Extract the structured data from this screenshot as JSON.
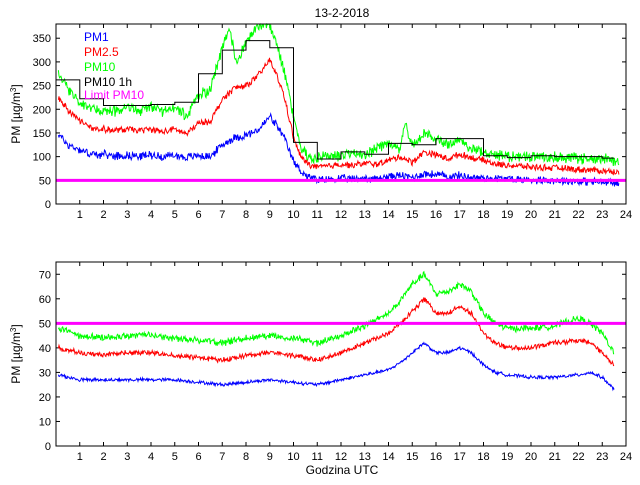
{
  "chart_data": [
    {
      "type": "line",
      "title": "13-2-2018",
      "ylabel_main": "PM [µg/m",
      "ylabel_sup": "3",
      "ylabel_end": "]",
      "xlabel": "",
      "xlim": [
        0,
        24
      ],
      "ylim": [
        0,
        380
      ],
      "xticks": [
        1,
        2,
        3,
        4,
        5,
        6,
        7,
        8,
        9,
        10,
        11,
        12,
        13,
        14,
        15,
        16,
        17,
        18,
        19,
        20,
        21,
        22,
        23,
        24
      ],
      "yticks": [
        0,
        50,
        100,
        150,
        200,
        250,
        300,
        350
      ],
      "limit": 50,
      "legend_position": "top-left",
      "series": [
        {
          "name": "PM1",
          "color": "#0000ff",
          "x": [
            0.1,
            0.5,
            1,
            1.5,
            2,
            2.5,
            3,
            3.5,
            4,
            4.5,
            5,
            5.5,
            6,
            6.5,
            7,
            7.5,
            8,
            8.5,
            8.8,
            9,
            9.3,
            9.6,
            10,
            10.3,
            10.6,
            10.8,
            11,
            11.5,
            12,
            12.5,
            13,
            13.5,
            14,
            14.5,
            15,
            15.5,
            16,
            16.5,
            17,
            17.5,
            18,
            18.5,
            19,
            19.5,
            20,
            20.5,
            21,
            21.5,
            22,
            22.5,
            23,
            23.5,
            23.7
          ],
          "values": [
            148,
            125,
            115,
            105,
            104,
            102,
            103,
            101,
            104,
            100,
            103,
            98,
            103,
            100,
            125,
            140,
            145,
            155,
            172,
            185,
            165,
            140,
            90,
            70,
            58,
            55,
            50,
            52,
            54,
            52,
            55,
            53,
            58,
            60,
            56,
            64,
            62,
            58,
            60,
            56,
            55,
            54,
            53,
            52,
            51,
            51,
            50,
            49,
            48,
            47,
            46,
            44,
            42
          ]
        },
        {
          "name": "PM2.5",
          "color": "#ff0000",
          "x": [
            0.1,
            0.5,
            1,
            1.5,
            2,
            2.5,
            3,
            3.5,
            4,
            4.5,
            5,
            5.5,
            6,
            6.5,
            7,
            7.5,
            8,
            8.5,
            8.8,
            9,
            9.3,
            9.6,
            10,
            10.3,
            10.6,
            10.8,
            11,
            11.5,
            12,
            12.5,
            13,
            13.5,
            14,
            14.5,
            15,
            15.5,
            16,
            16.5,
            17,
            17.5,
            18,
            18.5,
            19,
            19.5,
            20,
            20.5,
            21,
            21.5,
            22,
            22.5,
            23,
            23.5,
            23.7
          ],
          "values": [
            225,
            200,
            175,
            160,
            158,
            155,
            158,
            155,
            158,
            152,
            158,
            148,
            170,
            175,
            220,
            245,
            250,
            270,
            290,
            305,
            270,
            230,
            140,
            100,
            85,
            80,
            78,
            80,
            84,
            82,
            86,
            84,
            92,
            100,
            88,
            110,
            104,
            95,
            105,
            98,
            92,
            84,
            82,
            80,
            78,
            77,
            76,
            75,
            73,
            72,
            70,
            68,
            66
          ]
        },
        {
          "name": "PM10",
          "color": "#00ff00",
          "x": [
            0.1,
            0.5,
            1,
            1.5,
            2,
            2.5,
            3,
            3.5,
            4,
            4.5,
            5,
            5.5,
            6,
            6.5,
            7,
            7.3,
            7.6,
            8,
            8.5,
            8.8,
            9,
            9.3,
            9.6,
            10,
            10.3,
            10.6,
            10.8,
            11,
            11.5,
            12,
            12.5,
            13,
            13.5,
            14,
            14.5,
            14.7,
            15,
            15.5,
            16,
            16.5,
            17,
            17.5,
            18,
            18.5,
            19,
            19.5,
            20,
            20.5,
            21,
            21.5,
            22,
            22.5,
            23,
            23.5,
            23.7
          ],
          "values": [
            275,
            245,
            215,
            200,
            198,
            195,
            205,
            198,
            208,
            192,
            205,
            185,
            230,
            240,
            330,
            370,
            300,
            340,
            375,
            380,
            375,
            340,
            280,
            180,
            120,
            100,
            95,
            100,
            105,
            102,
            108,
            104,
            115,
            130,
            112,
            175,
            120,
            150,
            135,
            125,
            130,
            120,
            110,
            105,
            102,
            100,
            100,
            100,
            100,
            98,
            97,
            96,
            95,
            90,
            88
          ]
        },
        {
          "name": "PM10 1h",
          "color": "#000000",
          "step": true,
          "x": [
            0,
            1,
            2,
            3,
            4,
            5,
            6,
            7,
            8,
            9,
            10,
            11,
            12,
            13,
            14,
            15,
            16,
            17,
            18,
            19,
            20,
            21,
            22,
            23,
            23.5
          ],
          "values": [
            262,
            222,
            208,
            208,
            210,
            215,
            275,
            325,
            345,
            330,
            130,
            95,
            110,
            105,
            128,
            125,
            138,
            138,
            102,
            98,
            102,
            100,
            100,
            97,
            97
          ]
        }
      ]
    },
    {
      "type": "line",
      "title": "",
      "ylabel_main": "PM [µg/m",
      "ylabel_sup": "3",
      "ylabel_end": "]",
      "xlabel": "Godzina UTC",
      "xlim": [
        0,
        24
      ],
      "ylim": [
        0,
        75
      ],
      "xticks": [
        1,
        2,
        3,
        4,
        5,
        6,
        7,
        8,
        9,
        10,
        11,
        12,
        13,
        14,
        15,
        16,
        17,
        18,
        19,
        20,
        21,
        22,
        23,
        24
      ],
      "yticks": [
        0,
        10,
        20,
        30,
        40,
        50,
        60,
        70
      ],
      "limit": 50,
      "series": [
        {
          "name": "PM1",
          "color": "#0000ff",
          "x": [
            0.1,
            0.5,
            1,
            2,
            3,
            4,
            5,
            6,
            7,
            8,
            9,
            10,
            11,
            12,
            13,
            14,
            14.5,
            15,
            15.5,
            16,
            16.5,
            17,
            17.5,
            18,
            18.5,
            19,
            20,
            21,
            22,
            22.5,
            23,
            23.5
          ],
          "values": [
            29,
            28,
            27,
            27,
            27,
            27,
            27,
            26,
            25,
            26,
            27,
            26,
            25,
            27,
            29,
            31,
            34,
            38,
            42,
            38,
            38,
            40,
            38,
            33,
            30,
            29,
            28,
            28,
            29,
            30,
            28,
            23
          ]
        },
        {
          "name": "PM2.5",
          "color": "#ff0000",
          "x": [
            0.1,
            0.5,
            1,
            2,
            3,
            4,
            5,
            6,
            7,
            8,
            9,
            10,
            11,
            12,
            13,
            14,
            14.5,
            15,
            15.5,
            16,
            16.5,
            17,
            17.5,
            18,
            18.5,
            19,
            20,
            21,
            22,
            22.5,
            23,
            23.5
          ],
          "values": [
            40,
            39,
            38,
            37,
            38,
            38,
            37,
            36,
            35,
            37,
            38,
            37,
            35,
            38,
            42,
            46,
            50,
            55,
            60,
            54,
            54,
            57,
            54,
            46,
            42,
            40,
            40,
            42,
            43,
            42,
            38,
            33
          ]
        },
        {
          "name": "PM10",
          "color": "#00ff00",
          "x": [
            0.1,
            0.5,
            1,
            2,
            3,
            4,
            5,
            6,
            7,
            8,
            9,
            10,
            11,
            12,
            13,
            14,
            14.5,
            15,
            15.5,
            16,
            16.5,
            17,
            17.5,
            18,
            18.5,
            19,
            20,
            21,
            22,
            22.5,
            23,
            23.5
          ],
          "values": [
            48,
            47,
            45,
            44,
            45,
            45,
            44,
            43,
            42,
            44,
            45,
            44,
            42,
            45,
            49,
            54,
            59,
            66,
            70,
            62,
            63,
            66,
            63,
            54,
            50,
            48,
            48,
            49,
            52,
            50,
            46,
            38
          ]
        }
      ]
    }
  ],
  "legend": {
    "pm1": "PM1",
    "pm25": "PM2.5",
    "pm10": "PM10",
    "pm10_1h": "PM10 1h",
    "limit": "Limit PM10"
  },
  "colors": {
    "pm1": "#0000ff",
    "pm25": "#ff0000",
    "pm10": "#00ff00",
    "pm10_1h": "#000000",
    "limit": "#ff00ff"
  }
}
